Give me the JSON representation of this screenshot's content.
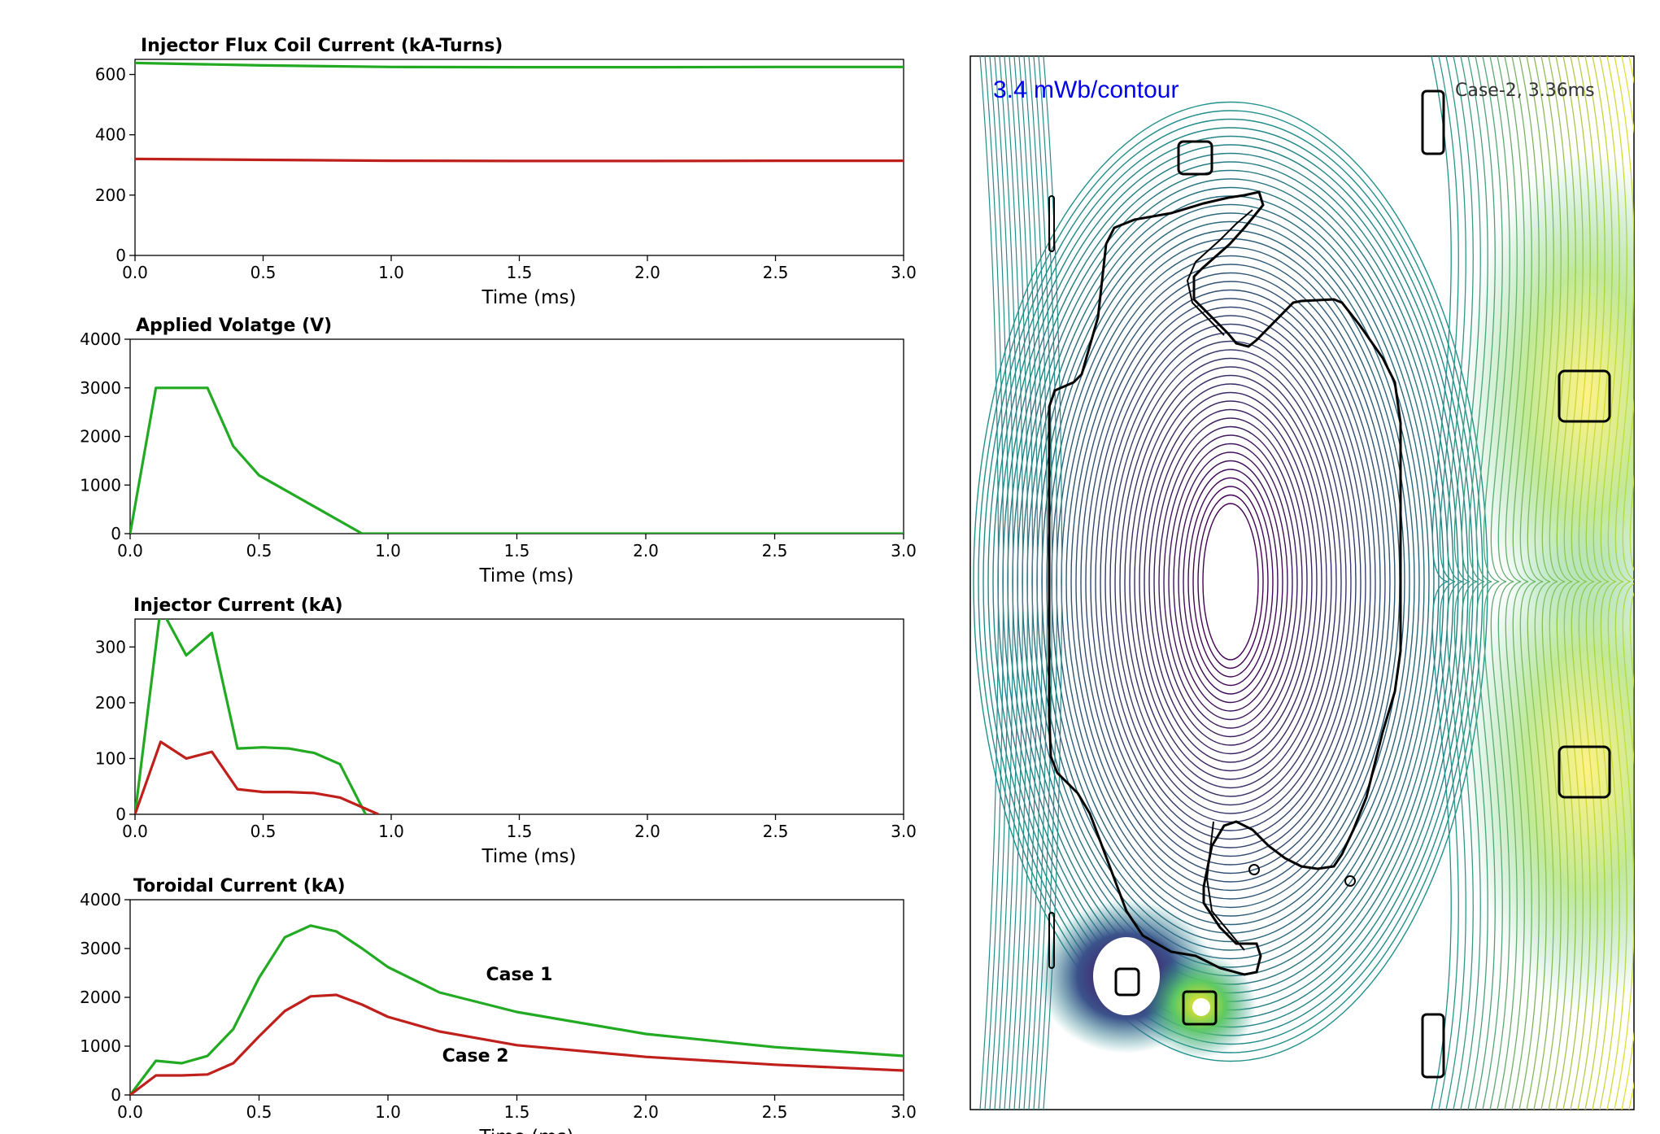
{
  "colors": {
    "case1": "#22aa22",
    "case2": "#c0201c",
    "note": "#0000ee"
  },
  "chart_data": [
    {
      "type": "line",
      "title": "Injector Flux Coil Current (kA-Turns)",
      "xlabel": "Time (ms)",
      "ylabel": "",
      "xlim": [
        0,
        3.0
      ],
      "ylim": [
        0,
        650
      ],
      "xticks": [
        "0.0",
        "0.5",
        "1.0",
        "1.5",
        "2.0",
        "2.5",
        "3.0"
      ],
      "yticks": [
        "0",
        "200",
        "400",
        "600"
      ],
      "series": [
        {
          "color": "#22aa22",
          "x": [
            0,
            0.5,
            1.0,
            1.5,
            2.0,
            2.5,
            3.0
          ],
          "y": [
            638,
            630,
            625,
            624,
            624,
            625,
            625
          ]
        },
        {
          "color": "#c0201c",
          "x": [
            0,
            0.5,
            1.0,
            1.5,
            2.0,
            2.5,
            3.0
          ],
          "y": [
            320,
            317,
            314,
            313,
            313,
            314,
            314
          ]
        }
      ]
    },
    {
      "type": "line",
      "title": "Applied Volatge (V)",
      "xlabel": "Time (ms)",
      "ylabel": "",
      "xlim": [
        0,
        3.0
      ],
      "ylim": [
        0,
        4000
      ],
      "xticks": [
        "0.0",
        "0.5",
        "1.0",
        "1.5",
        "2.0",
        "2.5",
        "3.0"
      ],
      "yticks": [
        "0",
        "1000",
        "2000",
        "3000",
        "4000"
      ],
      "series": [
        {
          "color": "#22aa22",
          "x": [
            0,
            0.1,
            0.3,
            0.4,
            0.5,
            0.9,
            3.0
          ],
          "y": [
            0,
            3000,
            3000,
            1800,
            1200,
            0,
            0
          ]
        }
      ]
    },
    {
      "type": "line",
      "title": "Injector Current (kA)",
      "xlabel": "Time (ms)",
      "ylabel": "",
      "xlim": [
        0,
        3.0
      ],
      "ylim": [
        0,
        350
      ],
      "xticks": [
        "0.0",
        "0.5",
        "1.0",
        "1.5",
        "2.0",
        "2.5",
        "3.0"
      ],
      "yticks": [
        "0",
        "100",
        "200",
        "300"
      ],
      "series": [
        {
          "color": "#22aa22",
          "x": [
            0,
            0.1,
            0.2,
            0.3,
            0.4,
            0.5,
            0.6,
            0.7,
            0.8,
            0.9
          ],
          "y": [
            0,
            370,
            285,
            325,
            118,
            120,
            118,
            110,
            90,
            0
          ]
        },
        {
          "color": "#c0201c",
          "x": [
            0,
            0.1,
            0.2,
            0.3,
            0.4,
            0.5,
            0.6,
            0.7,
            0.8,
            0.9,
            0.95
          ],
          "y": [
            0,
            130,
            100,
            112,
            45,
            40,
            40,
            38,
            30,
            10,
            0
          ]
        }
      ]
    },
    {
      "type": "line",
      "title": "Toroidal Current (kA)",
      "xlabel": "Time (ms)",
      "ylabel": "",
      "xlim": [
        0,
        3.0
      ],
      "ylim": [
        0,
        4000
      ],
      "xticks": [
        "0.0",
        "0.5",
        "1.0",
        "1.5",
        "2.0",
        "2.5",
        "3.0"
      ],
      "yticks": [
        "0",
        "1000",
        "2000",
        "3000",
        "4000"
      ],
      "annotations": [
        {
          "text": "Case 1",
          "x": 1.38,
          "y": 2350
        },
        {
          "text": "Case 2",
          "x": 1.21,
          "y": 680
        }
      ],
      "series": [
        {
          "name": "Case 1",
          "color": "#22aa22",
          "x": [
            0,
            0.1,
            0.2,
            0.3,
            0.4,
            0.5,
            0.6,
            0.7,
            0.8,
            0.9,
            1.0,
            1.2,
            1.5,
            2.0,
            2.5,
            3.0
          ],
          "y": [
            0,
            700,
            650,
            800,
            1350,
            2400,
            3230,
            3470,
            3350,
            3000,
            2620,
            2100,
            1700,
            1250,
            980,
            800
          ]
        },
        {
          "name": "Case 2",
          "color": "#c0201c",
          "x": [
            0,
            0.1,
            0.2,
            0.3,
            0.4,
            0.5,
            0.6,
            0.7,
            0.8,
            0.9,
            1.0,
            1.2,
            1.5,
            2.0,
            2.5,
            3.0
          ],
          "y": [
            0,
            400,
            400,
            420,
            650,
            1200,
            1720,
            2020,
            2050,
            1850,
            1600,
            1300,
            1020,
            780,
            620,
            500
          ]
        }
      ]
    }
  ],
  "contour_plot": {
    "type": "contour",
    "note": "3.4 mWb/contour",
    "label": "Case-2, 3.36ms"
  }
}
